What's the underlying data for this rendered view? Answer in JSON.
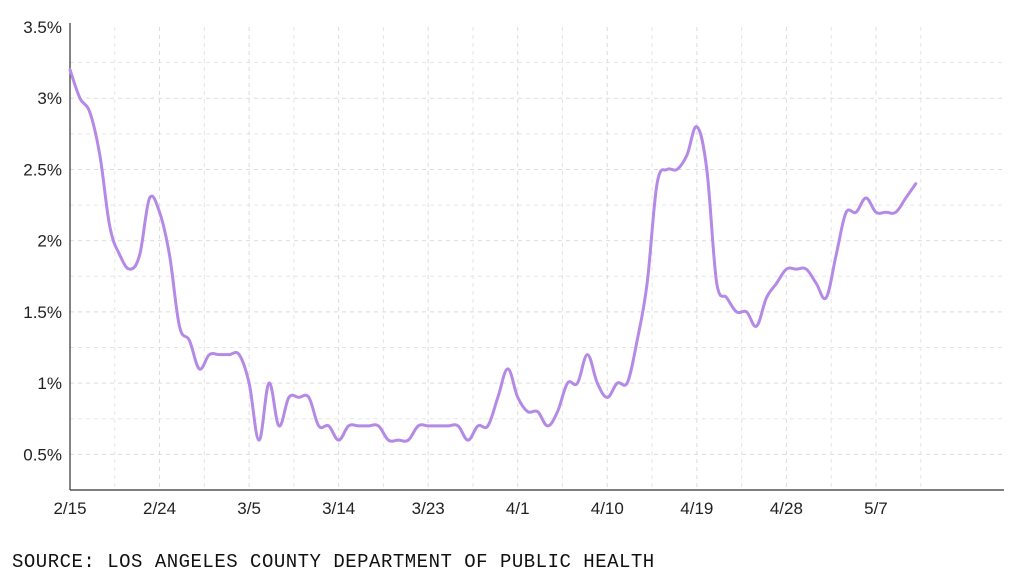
{
  "chart_data": {
    "type": "line",
    "title": "",
    "xlabel": "",
    "ylabel": "",
    "x_tick_labels": [
      "2/15",
      "2/24",
      "3/5",
      "3/14",
      "3/23",
      "4/1",
      "4/10",
      "4/19",
      "4/28",
      "5/7"
    ],
    "y_tick_labels": [
      "0.5%",
      "1%",
      "1.5%",
      "2%",
      "2.5%",
      "3%",
      "3.5%"
    ],
    "y_ticks": [
      0.5,
      1,
      1.5,
      2,
      2.5,
      3,
      3.5
    ],
    "ylim": [
      0.25,
      3.5
    ],
    "xlim": [
      "2021-02-15",
      "2021-05-11"
    ],
    "grid": true,
    "line_color": "#b48ae6",
    "series": [
      {
        "x": [
          "2021-02-15",
          "2021-02-16",
          "2021-02-17",
          "2021-02-18",
          "2021-02-19",
          "2021-02-20",
          "2021-02-21",
          "2021-02-22",
          "2021-02-23",
          "2021-02-24",
          "2021-02-25",
          "2021-02-26",
          "2021-02-27",
          "2021-02-28",
          "2021-03-01",
          "2021-03-02",
          "2021-03-03",
          "2021-03-04",
          "2021-03-05",
          "2021-03-06",
          "2021-03-07",
          "2021-03-08",
          "2021-03-09",
          "2021-03-10",
          "2021-03-11",
          "2021-03-12",
          "2021-03-13",
          "2021-03-14",
          "2021-03-15",
          "2021-03-16",
          "2021-03-17",
          "2021-03-18",
          "2021-03-19",
          "2021-03-20",
          "2021-03-21",
          "2021-03-22",
          "2021-03-23",
          "2021-03-24",
          "2021-03-25",
          "2021-03-26",
          "2021-03-27",
          "2021-03-28",
          "2021-03-29",
          "2021-03-30",
          "2021-03-31",
          "2021-04-01",
          "2021-04-02",
          "2021-04-03",
          "2021-04-04",
          "2021-04-05",
          "2021-04-06",
          "2021-04-07",
          "2021-04-08",
          "2021-04-09",
          "2021-04-10",
          "2021-04-11",
          "2021-04-12",
          "2021-04-13",
          "2021-04-14",
          "2021-04-15",
          "2021-04-16",
          "2021-04-17",
          "2021-04-18",
          "2021-04-19",
          "2021-04-20",
          "2021-04-21",
          "2021-04-22",
          "2021-04-23",
          "2021-04-24",
          "2021-04-25",
          "2021-04-26",
          "2021-04-27",
          "2021-04-28",
          "2021-04-29",
          "2021-04-30",
          "2021-05-01",
          "2021-05-02",
          "2021-05-03",
          "2021-05-04",
          "2021-05-05",
          "2021-05-06",
          "2021-05-07",
          "2021-05-08",
          "2021-05-09",
          "2021-05-10",
          "2021-05-11"
        ],
        "values": [
          3.2,
          3.0,
          2.9,
          2.6,
          2.1,
          1.9,
          1.8,
          1.9,
          2.3,
          2.2,
          1.9,
          1.4,
          1.3,
          1.1,
          1.2,
          1.2,
          1.2,
          1.2,
          1.0,
          0.6,
          1.0,
          0.7,
          0.9,
          0.9,
          0.9,
          0.7,
          0.7,
          0.6,
          0.7,
          0.7,
          0.7,
          0.7,
          0.6,
          0.6,
          0.6,
          0.7,
          0.7,
          0.7,
          0.7,
          0.7,
          0.6,
          0.7,
          0.7,
          0.9,
          1.1,
          0.9,
          0.8,
          0.8,
          0.7,
          0.8,
          1.0,
          1.0,
          1.2,
          1.0,
          0.9,
          1.0,
          1.0,
          1.3,
          1.7,
          2.4,
          2.5,
          2.5,
          2.6,
          2.8,
          2.5,
          1.7,
          1.6,
          1.5,
          1.5,
          1.4,
          1.6,
          1.7,
          1.8,
          1.8,
          1.8,
          1.7,
          1.6,
          1.9,
          2.2,
          2.2,
          2.3,
          2.2,
          2.2,
          2.2,
          2.3,
          2.4
        ]
      }
    ]
  },
  "source": "SOURCE: LOS ANGELES COUNTY DEPARTMENT OF PUBLIC HEALTH"
}
